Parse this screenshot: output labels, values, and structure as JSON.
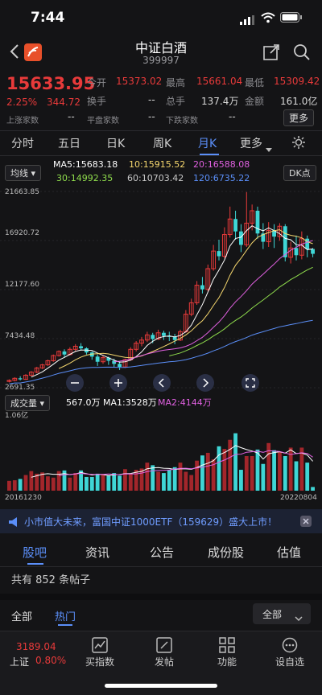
{
  "status_bar": {
    "time": "7:44"
  },
  "header": {
    "title": "中证白酒",
    "code": "399997"
  },
  "quote": {
    "price": "15633.95",
    "change_pct": "2.25%",
    "change": "344.72",
    "open_label": "今开",
    "open": "15373.02",
    "high_label": "最高",
    "high": "15661.04",
    "low_label": "最低",
    "low": "15309.42",
    "turnover_label": "换手",
    "turnover": "--",
    "volume_label": "总手",
    "volume": "137.4万",
    "amount_label": "金额",
    "amount": "161.0亿",
    "up_label": "上涨家数",
    "up": "--",
    "flat_label": "平盘家数",
    "flat": "--",
    "down_label": "下跌家数",
    "down": "--",
    "more": "更多"
  },
  "period_tabs": [
    "分时",
    "五日",
    "日K",
    "周K",
    "月K",
    "更多"
  ],
  "active_tab": "月K",
  "ma_bar": {
    "selector": "均线",
    "ma5": "MA5:15683.18",
    "ma10": "10:15915.52",
    "ma20": "20:16588.08",
    "ma30": "30:14992.35",
    "ma60": "60:10703.42",
    "ma120": "120:6735.22",
    "dk": "DK点"
  },
  "price_axis": [
    "21663.85",
    "16920.72",
    "12177.60",
    "7434.48",
    "2691.35"
  ],
  "volume_bar": {
    "selector": "成交量",
    "vol": "567.0万",
    "ma1": "MA1:3528万",
    "ma2": "MA2:4144万",
    "axis_top": "1.06亿"
  },
  "date_axis": {
    "start": "20161230",
    "end": "20220804"
  },
  "news": {
    "text": "小市值大未来，富国中证1000ETF（159629）盛大上市！"
  },
  "sub_tabs": [
    "股吧",
    "资讯",
    "公告",
    "成份股",
    "估值"
  ],
  "active_sub_tab": "股吧",
  "posts": {
    "count_text": "共有 852 条帖子"
  },
  "filter": {
    "all_left": "全部",
    "hot": "热门",
    "all_dropdown": "全部"
  },
  "bottom": {
    "index_price": "3189.04",
    "index_name": "上证",
    "index_change": "0.80%",
    "items": [
      "买指数",
      "发帖",
      "功能",
      "设自选"
    ]
  },
  "colors": {
    "up": "#e83a3a",
    "down": "#3fd6d6",
    "accent": "#5b8ff9"
  },
  "chart_data": {
    "type": "candlestick",
    "candles": [
      [
        3300,
        3400,
        3500,
        3200
      ],
      [
        3400,
        3600,
        3700,
        3300
      ],
      [
        3600,
        3500,
        3800,
        3400
      ],
      [
        3500,
        3900,
        4000,
        3450
      ],
      [
        3900,
        4200,
        4300,
        3800
      ],
      [
        4200,
        4600,
        4700,
        4100
      ],
      [
        4600,
        4900,
        5000,
        4500
      ],
      [
        4900,
        5300,
        5400,
        4800
      ],
      [
        5300,
        5800,
        5900,
        5200
      ],
      [
        5800,
        6200,
        6300,
        5700
      ],
      [
        6200,
        5900,
        6400,
        5600
      ],
      [
        5900,
        6400,
        6600,
        5800
      ],
      [
        6400,
        6700,
        6900,
        6200
      ],
      [
        6700,
        6500,
        7000,
        6300
      ],
      [
        6500,
        6100,
        6600,
        5900
      ],
      [
        6100,
        5700,
        6200,
        5400
      ],
      [
        5700,
        5200,
        5900,
        4800
      ],
      [
        5200,
        5600,
        5800,
        5000
      ],
      [
        5600,
        5300,
        5700,
        4900
      ],
      [
        5300,
        5000,
        5500,
        4700
      ],
      [
        5000,
        4700,
        5200,
        4400
      ],
      [
        4700,
        5400,
        5500,
        4600
      ],
      [
        5400,
        6400,
        6600,
        5300
      ],
      [
        6400,
        7000,
        7200,
        6200
      ],
      [
        7000,
        7300,
        7600,
        6700
      ],
      [
        7300,
        7800,
        8100,
        7100
      ],
      [
        7800,
        7400,
        8000,
        7000
      ],
      [
        7400,
        8000,
        8300,
        7300
      ],
      [
        8000,
        7700,
        8200,
        7300
      ],
      [
        7700,
        7600,
        8100,
        7200
      ],
      [
        7600,
        7300,
        7900,
        6900
      ],
      [
        7300,
        8100,
        8300,
        7200
      ],
      [
        8100,
        9800,
        10200,
        8000
      ],
      [
        9800,
        10900,
        11300,
        9600
      ],
      [
        10900,
        12600,
        13000,
        10700
      ],
      [
        12600,
        12200,
        13400,
        11800
      ],
      [
        12200,
        14200,
        14600,
        12000
      ],
      [
        14200,
        15900,
        16500,
        14000
      ],
      [
        15900,
        15400,
        17000,
        15000
      ],
      [
        15400,
        17500,
        18200,
        15200
      ],
      [
        17500,
        19000,
        20200,
        17200
      ],
      [
        19000,
        17800,
        19800,
        17000
      ],
      [
        17800,
        16500,
        18500,
        15800
      ],
      [
        16500,
        18600,
        21600,
        16300
      ],
      [
        18600,
        19800,
        20400,
        17900
      ],
      [
        19800,
        17600,
        20200,
        17100
      ],
      [
        17600,
        16800,
        18600,
        16100
      ],
      [
        16800,
        17900,
        18700,
        16300
      ],
      [
        17900,
        17300,
        18500,
        16200
      ],
      [
        17300,
        18300,
        18600,
        16900
      ],
      [
        18300,
        15300,
        18500,
        14900
      ],
      [
        15300,
        16200,
        16800,
        14700
      ],
      [
        16200,
        15500,
        17400,
        15000
      ],
      [
        15500,
        17100,
        17800,
        15100
      ],
      [
        17100,
        16100,
        17400,
        15300
      ],
      [
        16100,
        15634,
        16200,
        15300
      ]
    ],
    "volumes": [
      1500,
      1600,
      1800,
      2400,
      3000,
      2600,
      2800,
      2200,
      2000,
      3000,
      3100,
      2000,
      2700,
      3100,
      2100,
      2100,
      2600,
      2500,
      2300,
      2700,
      2300,
      3300,
      2600,
      3200,
      3400,
      4300,
      3900,
      2900,
      2700,
      3200,
      3600,
      4300,
      2900,
      2400,
      4600,
      5400,
      5800,
      4800,
      6800,
      6400,
      7800,
      8800,
      3200,
      5300,
      5300,
      6300,
      4100,
      7300,
      6200,
      5900,
      5300,
      6600,
      4500,
      6600,
      4300,
      567
    ],
    "ylim": [
      2691.35,
      21663.85
    ]
  }
}
